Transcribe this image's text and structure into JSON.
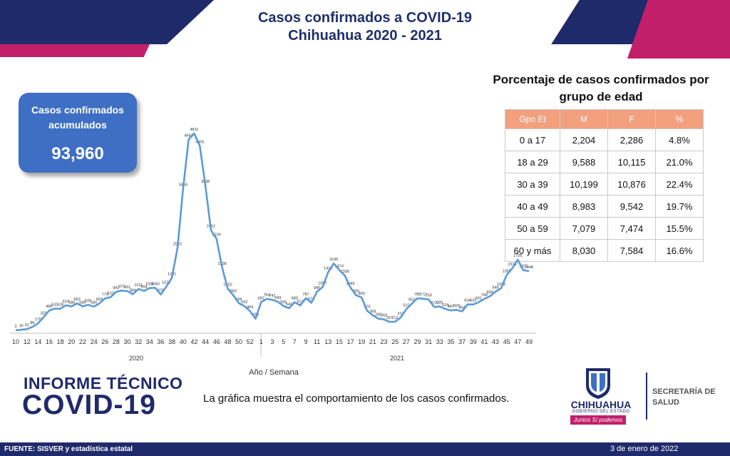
{
  "header": {
    "title_line1": "Casos confirmados a COVID-19",
    "title_line2": "Chihuahua 2020 - 2021"
  },
  "colors": {
    "navy": "#1f2a6b",
    "magenta": "#c21f6a",
    "line_blue": "#5b9bd5",
    "box_blue": "#3f6fc4",
    "table_header": "#f3a07e"
  },
  "total_box": {
    "label_line1": "Casos confirmados",
    "label_line2": "acumulados",
    "value": "93,960"
  },
  "age_table": {
    "title_line1": "Porcentaje de casos confirmados por",
    "title_line2": "grupo de edad",
    "headers": [
      "Gpo Et",
      "M",
      "F",
      "%"
    ],
    "rows": [
      [
        "0 a 17",
        "2,204",
        "2,286",
        "4.8%"
      ],
      [
        "18 a 29",
        "9,588",
        "10,115",
        "21.0%"
      ],
      [
        "30 a 39",
        "10,199",
        "10,876",
        "22.4%"
      ],
      [
        "40 a 49",
        "8,983",
        "9,542",
        "19.7%"
      ],
      [
        "50 a 59",
        "7,079",
        "7,474",
        "15.5%"
      ],
      [
        "60 y más",
        "8,030",
        "7,584",
        "16.6%"
      ]
    ]
  },
  "chart_data": {
    "type": "line",
    "xlabel": "Año / Semana",
    "ylabel": "",
    "title": "",
    "ylim": [
      0,
      4811
    ],
    "grid": false,
    "x_weeks": [
      10,
      11,
      12,
      13,
      14,
      15,
      16,
      17,
      18,
      19,
      20,
      21,
      22,
      23,
      24,
      25,
      26,
      27,
      28,
      29,
      30,
      31,
      32,
      33,
      34,
      35,
      36,
      37,
      38,
      39,
      40,
      41,
      42,
      43,
      44,
      45,
      46,
      47,
      48,
      49,
      50,
      51,
      52,
      53,
      1,
      2,
      3,
      4,
      5,
      6,
      7,
      8,
      9,
      10,
      11,
      12,
      13,
      14,
      15,
      16,
      17,
      18,
      19,
      20,
      21,
      22,
      23,
      24,
      25,
      26,
      27,
      28,
      29,
      30,
      31,
      32,
      33,
      34,
      35,
      36,
      37,
      38,
      39,
      40,
      41,
      42,
      43,
      44,
      45,
      46,
      47,
      48,
      49
    ],
    "x_tick_labels": [
      "10",
      "12",
      "14",
      "16",
      "18",
      "20",
      "22",
      "24",
      "26",
      "28",
      "30",
      "32",
      "34",
      "36",
      "38",
      "40",
      "42",
      "44",
      "46",
      "48",
      "50",
      "52",
      "1",
      "3",
      "5",
      "7",
      "9",
      "11",
      "13",
      "15",
      "17",
      "19",
      "21",
      "23",
      "25",
      "27",
      "29",
      "31",
      "33",
      "35",
      "37",
      "39",
      "41",
      "43",
      "45",
      "47",
      "49"
    ],
    "year_labels": [
      "2020",
      "2021"
    ],
    "series": [
      {
        "values": [
          3,
          16,
          31,
          86,
          170,
          320,
          485,
          532,
          528,
          614,
          588,
          660,
          586,
          626,
          580,
          659,
          779,
          810,
          941,
          972,
          961,
          884,
          1011,
          964,
          1034,
          1040,
          876,
          1071,
          1281,
          2015,
          3459,
          4664,
          4811,
          4506,
          3538,
          2451,
          2239,
          1538,
          1020,
          860,
          666,
          592,
          469,
          284,
          692,
          769,
          747,
          699,
          595,
          542,
          689,
          612,
          787,
          674,
          945,
          1057,
          1419,
          1636,
          1474,
          1338,
          1045,
          860,
          805,
          479,
          369,
          285,
          269,
          207,
          212,
          313,
          515,
          652,
          785,
          772,
          759,
          572,
          585,
          524,
          487,
          503,
          464,
          634,
          633,
          691,
          768,
          834,
          946,
          1028,
          1355,
          1515,
          1726,
          1470,
          1448
        ],
        "data_labels": [
          "3",
          "16",
          "31",
          "86",
          "170",
          "320",
          "485",
          "532",
          "528",
          "614",
          "588",
          "660",
          "586",
          "626",
          "580",
          "659",
          "779",
          "810",
          "941",
          "972",
          "961",
          "884",
          "1011",
          "964",
          "1034",
          "1040",
          "876",
          "1071",
          "1281",
          "2015",
          "3459",
          "4664",
          "4811",
          "4506",
          "3538",
          "2451",
          "2239",
          "1538",
          "1020",
          "860",
          "666",
          "592",
          "469",
          "284",
          "692",
          "769",
          "747",
          "699",
          "595",
          "542",
          "689",
          "612",
          "787",
          "674",
          "945",
          "1057",
          "1419",
          "1636",
          "1474",
          "1338",
          "1045",
          "860",
          "805",
          "479",
          "369",
          "285",
          "269",
          "207",
          "212",
          "313",
          "515",
          "652",
          "785",
          "772",
          "759",
          "572",
          "585",
          "524",
          "487",
          "503",
          "464",
          "634",
          "633",
          "691",
          "768",
          "834",
          "946",
          "1028",
          "1355",
          "1515",
          "1726",
          "1470",
          "1448"
        ]
      }
    ]
  },
  "caption": "La gráfica muestra el comportamiento de los casos confirmados.",
  "branding": {
    "informe_line1": "INFORME TÉCNICO",
    "informe_line2": "COVID-19",
    "state_name": "CHIHUAHUA",
    "state_sub": "GOBIERNO DEL ESTADO",
    "slogan": "Juntos Sí podemos",
    "secretaria_line1": "SECRETARÍA DE",
    "secretaria_line2": "SALUD"
  },
  "footer": {
    "source": "FUENTE: SISVER y estadística estatal",
    "date": "3 de enero de 2022"
  }
}
